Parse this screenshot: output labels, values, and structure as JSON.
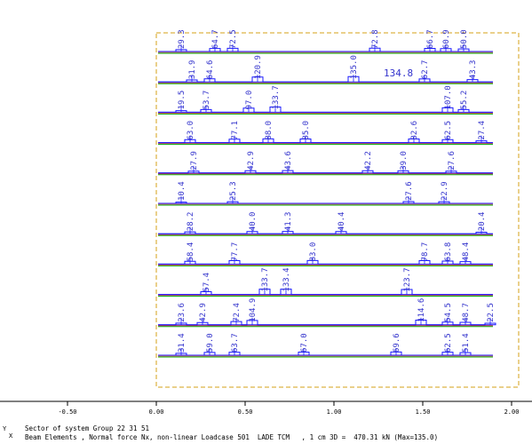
{
  "x_axis": {
    "ticks": [
      {
        "value": -0.5,
        "label": "-0.50"
      },
      {
        "value": 0.0,
        "label": "0.00"
      },
      {
        "value": 0.5,
        "label": "0.50"
      },
      {
        "value": 1.0,
        "label": "1.00"
      },
      {
        "value": 1.5,
        "label": "1.50"
      },
      {
        "value": 2.0,
        "label": "2.00"
      }
    ]
  },
  "beams": [
    {
      "labels": [
        {
          "x": 0.14,
          "text": "29.3"
        },
        {
          "x": 0.33,
          "text": "64.7"
        },
        {
          "x": 0.43,
          "text": "72.5"
        },
        {
          "x": 1.23,
          "text": "72.8"
        },
        {
          "x": 1.54,
          "text": "66.7"
        },
        {
          "x": 1.63,
          "text": "60.9"
        },
        {
          "x": 1.73,
          "text": "50.0"
        }
      ]
    },
    {
      "labels": [
        {
          "x": 0.2,
          "text": "31.9"
        },
        {
          "x": 0.3,
          "text": "64.6"
        },
        {
          "x": 0.57,
          "text": "120.9"
        },
        {
          "x": 1.11,
          "text": "135.0"
        },
        {
          "x": 1.51,
          "text": "62.7"
        },
        {
          "x": 1.78,
          "text": "43.3"
        }
      ]
    },
    {
      "labels": [
        {
          "x": 0.14,
          "text": "19.5"
        },
        {
          "x": 0.28,
          "text": "53.7"
        },
        {
          "x": 0.52,
          "text": "97.0"
        },
        {
          "x": 0.67,
          "text": "133.7"
        },
        {
          "x": 1.64,
          "text": "107.0"
        },
        {
          "x": 1.73,
          "text": "55.2"
        }
      ]
    },
    {
      "labels": [
        {
          "x": 0.19,
          "text": "63.0"
        },
        {
          "x": 0.44,
          "text": "77.1"
        },
        {
          "x": 0.63,
          "text": "88.0"
        },
        {
          "x": 0.84,
          "text": "85.0"
        },
        {
          "x": 1.45,
          "text": "82.6"
        },
        {
          "x": 1.64,
          "text": "62.5"
        },
        {
          "x": 1.83,
          "text": "27.4"
        }
      ]
    },
    {
      "labels": [
        {
          "x": 0.21,
          "text": "27.9"
        },
        {
          "x": 0.53,
          "text": "42.9"
        },
        {
          "x": 0.74,
          "text": "43.6"
        },
        {
          "x": 1.19,
          "text": "42.2"
        },
        {
          "x": 1.39,
          "text": "39.0"
        },
        {
          "x": 1.66,
          "text": "27.6"
        }
      ]
    },
    {
      "labels": [
        {
          "x": 0.14,
          "text": "10.4"
        },
        {
          "x": 0.43,
          "text": "25.3"
        },
        {
          "x": 1.42,
          "text": "27.6"
        },
        {
          "x": 1.62,
          "text": "22.9"
        }
      ]
    },
    {
      "labels": [
        {
          "x": 0.19,
          "text": "28.2"
        },
        {
          "x": 0.54,
          "text": "40.0"
        },
        {
          "x": 0.74,
          "text": "41.3"
        },
        {
          "x": 1.04,
          "text": "40.4"
        },
        {
          "x": 1.83,
          "text": "20.4"
        }
      ]
    },
    {
      "labels": [
        {
          "x": 0.19,
          "text": "58.4"
        },
        {
          "x": 0.44,
          "text": "77.7"
        },
        {
          "x": 0.88,
          "text": "83.0"
        },
        {
          "x": 1.51,
          "text": "78.7"
        },
        {
          "x": 1.64,
          "text": "63.8"
        },
        {
          "x": 1.74,
          "text": "48.4"
        }
      ]
    },
    {
      "labels": [
        {
          "x": 0.28,
          "text": "57.4"
        },
        {
          "x": 0.61,
          "text": "133.7"
        },
        {
          "x": 0.73,
          "text": "133.4"
        },
        {
          "x": 1.41,
          "text": "123.7"
        }
      ]
    },
    {
      "labels": [
        {
          "x": 0.14,
          "text": "23.6"
        },
        {
          "x": 0.26,
          "text": "42.9"
        },
        {
          "x": 0.45,
          "text": "72.4"
        },
        {
          "x": 0.54,
          "text": "104.9"
        },
        {
          "x": 1.49,
          "text": "114.6"
        },
        {
          "x": 1.64,
          "text": "54.5"
        },
        {
          "x": 1.74,
          "text": "48.7"
        },
        {
          "x": 1.88,
          "text": "22.5"
        }
      ]
    },
    {
      "labels": [
        {
          "x": 0.14,
          "text": "31.4"
        },
        {
          "x": 0.3,
          "text": "59.0"
        },
        {
          "x": 0.44,
          "text": "63.7"
        },
        {
          "x": 0.83,
          "text": "67.0"
        },
        {
          "x": 1.35,
          "text": "69.6"
        },
        {
          "x": 1.64,
          "text": "62.5"
        },
        {
          "x": 1.74,
          "text": "51.4"
        }
      ]
    }
  ],
  "highlight": {
    "text": "134.8",
    "x": 1.28
  },
  "footer": {
    "line1": "Sector of system Group 22 31 51",
    "line2": "Beam Elements , Normal force Nx, non-linear Loadcase 501  LADE TCM   , 1 cm 3D =  470.31 kN (Max=135.0)"
  },
  "axis_glyph": {
    "y": "Y",
    "x": "X"
  },
  "colors": {
    "beam": "#1a1aff",
    "green": "#00aa00",
    "red": "#cc0000",
    "label": "#3333cc",
    "frame": "#d4a017"
  }
}
